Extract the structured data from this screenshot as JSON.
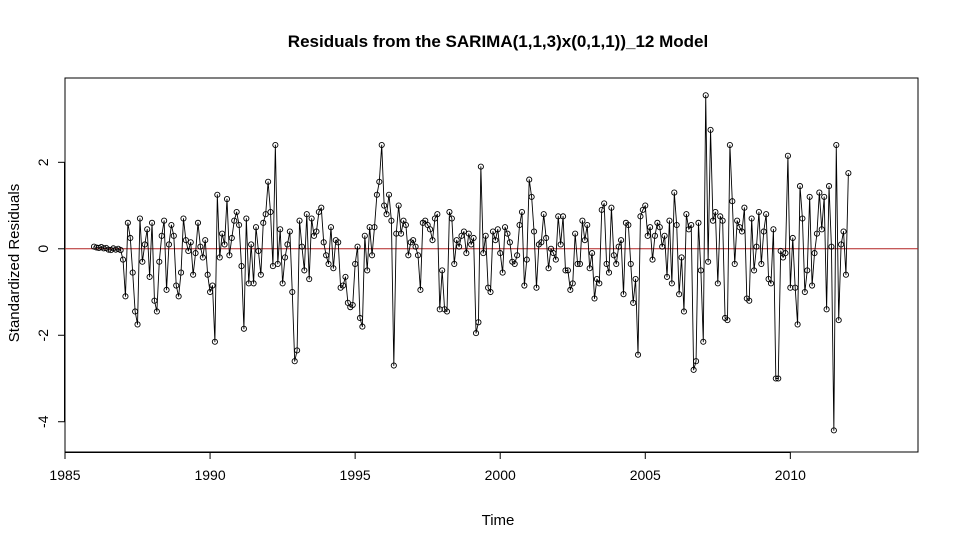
{
  "chart_data": {
    "type": "line",
    "title": "Residuals from the SARIMA(1,1,3)x(0,1,1))_12 Model",
    "xlabel": "Time",
    "ylabel": "Standardized Residuals",
    "xlim": [
      1985,
      2014.4
    ],
    "ylim": [
      -4.7,
      3.95
    ],
    "x_ticks": [
      1985,
      1990,
      1995,
      2000,
      2005,
      2010
    ],
    "y_ticks": [
      -4,
      -2,
      0,
      2
    ],
    "reference_line": {
      "y": 0,
      "color": "#b22222"
    },
    "line_color": "#000000",
    "marker": "open-circle",
    "grid": false,
    "series": [
      {
        "start": 1986.0,
        "frequency": 12,
        "values": [
          0.05,
          0.03,
          0.02,
          0.04,
          0.01,
          0.02,
          -0.02,
          -0.03,
          0.01,
          -0.02,
          0.0,
          -0.03,
          -0.25,
          -1.1,
          0.6,
          0.25,
          -0.55,
          -1.45,
          -1.75,
          0.7,
          -0.3,
          0.1,
          0.45,
          -0.65,
          0.6,
          -1.2,
          -1.45,
          -0.3,
          0.3,
          0.65,
          -0.95,
          0.1,
          0.55,
          0.3,
          -0.85,
          -1.1,
          -0.55,
          0.7,
          0.2,
          -0.05,
          0.15,
          -0.6,
          -0.1,
          0.6,
          0.05,
          -0.2,
          0.2,
          -0.6,
          -1.0,
          -0.85,
          -2.15,
          1.25,
          -0.2,
          0.35,
          0.1,
          1.15,
          -0.15,
          0.25,
          0.65,
          0.85,
          0.55,
          -0.4,
          -1.85,
          0.7,
          -0.8,
          0.1,
          -0.8,
          0.5,
          -0.05,
          -0.6,
          0.6,
          0.8,
          1.55,
          0.85,
          -0.4,
          2.4,
          -0.35,
          0.45,
          -0.8,
          -0.2,
          0.1,
          0.4,
          -1.0,
          -2.6,
          -2.35,
          0.65,
          0.05,
          -0.5,
          0.8,
          -0.7,
          0.7,
          0.3,
          0.4,
          0.85,
          0.95,
          0.15,
          -0.15,
          -0.35,
          0.5,
          -0.45,
          0.2,
          0.15,
          -0.9,
          -0.85,
          -0.65,
          -1.25,
          -1.35,
          -1.3,
          -0.35,
          0.05,
          -1.6,
          -1.8,
          0.3,
          -0.5,
          0.5,
          -0.15,
          0.5,
          1.25,
          1.55,
          2.4,
          1.0,
          0.8,
          1.25,
          0.65,
          -2.7,
          0.35,
          1.0,
          0.35,
          0.65,
          0.55,
          -0.15,
          0.15,
          0.2,
          0.05,
          -0.15,
          -0.95,
          0.6,
          0.65,
          0.55,
          0.45,
          0.2,
          0.7,
          0.8,
          -1.4,
          -0.5,
          -1.4,
          -1.45,
          0.85,
          0.7,
          -0.35,
          0.2,
          0.05,
          0.3,
          0.4,
          -0.1,
          0.35,
          0.1,
          0.25,
          -1.95,
          -1.7,
          1.9,
          -0.1,
          0.3,
          -0.9,
          -1.0,
          0.4,
          0.2,
          0.45,
          -0.1,
          -0.55,
          0.5,
          0.35,
          0.15,
          -0.3,
          -0.35,
          -0.15,
          0.55,
          0.85,
          -0.85,
          -0.25,
          1.6,
          1.2,
          0.4,
          -0.9,
          0.1,
          0.15,
          0.8,
          0.25,
          -0.45,
          0.0,
          -0.1,
          -0.25,
          0.75,
          0.1,
          0.75,
          -0.5,
          -0.5,
          -0.95,
          -0.8,
          0.35,
          -0.35,
          -0.35,
          0.65,
          0.2,
          0.55,
          -0.45,
          -0.1,
          -1.15,
          -0.7,
          -0.8,
          0.9,
          1.05,
          -0.35,
          -0.55,
          0.95,
          -0.15,
          -0.35,
          0.05,
          0.2,
          -1.05,
          0.6,
          0.55,
          -0.35,
          -1.25,
          -0.7,
          -2.45,
          0.75,
          0.9,
          1.0,
          0.3,
          0.5,
          -0.25,
          0.3,
          0.6,
          0.5,
          0.05,
          0.3,
          -0.65,
          0.65,
          -0.8,
          1.3,
          0.55,
          -1.05,
          -0.2,
          -1.45,
          0.8,
          0.45,
          0.55,
          -2.8,
          -2.6,
          0.6,
          -0.5,
          -2.15,
          3.55,
          -0.3,
          2.75,
          0.65,
          0.85,
          -0.8,
          0.75,
          0.65,
          -1.6,
          -1.65,
          2.4,
          1.1,
          -0.35,
          0.65,
          0.5,
          0.4,
          0.95,
          -1.15,
          -1.2,
          0.7,
          -0.5,
          0.05,
          0.85,
          -0.35,
          0.4,
          0.8,
          -0.7,
          -0.8,
          0.45,
          -3.0,
          -3.0,
          -0.05,
          -0.2,
          -0.1,
          2.15,
          -0.9,
          0.25,
          -0.9,
          -1.75,
          1.45,
          0.7,
          -1.0,
          -0.5,
          1.2,
          -0.85,
          -0.1,
          0.35,
          1.3,
          0.45,
          1.2,
          -1.4,
          1.45,
          0.05,
          -4.2,
          2.4,
          -1.65,
          0.1,
          0.4,
          -0.6,
          1.75
        ]
      }
    ]
  }
}
